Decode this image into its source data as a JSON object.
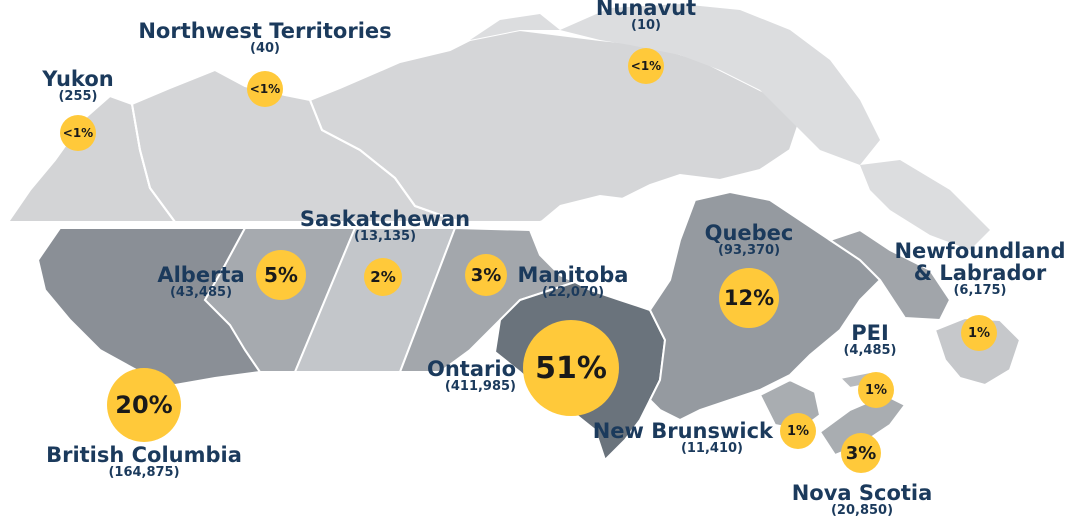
{
  "colors": {
    "land": "#d3d4d6",
    "land_light": "#dadbdd",
    "border": "#ffffff",
    "bc": "#8a8f96",
    "alberta": "#a6aaaf",
    "saskatchewan": "#c3c6ca",
    "manitoba": "#a3a7ac",
    "ontario": "#6a737c",
    "quebec": "#959aa0",
    "atlantic": "#a1a5aa",
    "bubble": "#ffc93a",
    "label": "#1b3a5c"
  },
  "provinces": [
    {
      "id": "yukon",
      "name": "Yukon",
      "count": "(255)",
      "share": "<1%"
    },
    {
      "id": "nwt",
      "name": "Northwest Territories",
      "count": "(40)",
      "share": "<1%"
    },
    {
      "id": "nunavut",
      "name": "Nunavut",
      "count": "(10)",
      "share": "<1%"
    },
    {
      "id": "bc",
      "name": "British Columbia",
      "count": "(164,875)",
      "share": "20%"
    },
    {
      "id": "alberta",
      "name": "Alberta",
      "count": "(43,485)",
      "share": "5%"
    },
    {
      "id": "saskatchewan",
      "name": "Saskatchewan",
      "count": "(13,135)",
      "share": "2%"
    },
    {
      "id": "manitoba",
      "name": "Manitoba",
      "count": "(22,070)",
      "share": "3%"
    },
    {
      "id": "ontario",
      "name": "Ontario",
      "count": "(411,985)",
      "share": "51%"
    },
    {
      "id": "quebec",
      "name": "Quebec",
      "count": "(93,370)",
      "share": "12%"
    },
    {
      "id": "nl",
      "name": "Newfoundland\n& Labrador",
      "count": "(6,175)",
      "share": "1%"
    },
    {
      "id": "pei",
      "name": "PEI",
      "count": "(4,485)",
      "share": "1%"
    },
    {
      "id": "nb",
      "name": "New Brunswick",
      "count": "(11,410)",
      "share": "1%"
    },
    {
      "id": "ns",
      "name": "Nova Scotia",
      "count": "(20,850)",
      "share": "3%"
    }
  ]
}
